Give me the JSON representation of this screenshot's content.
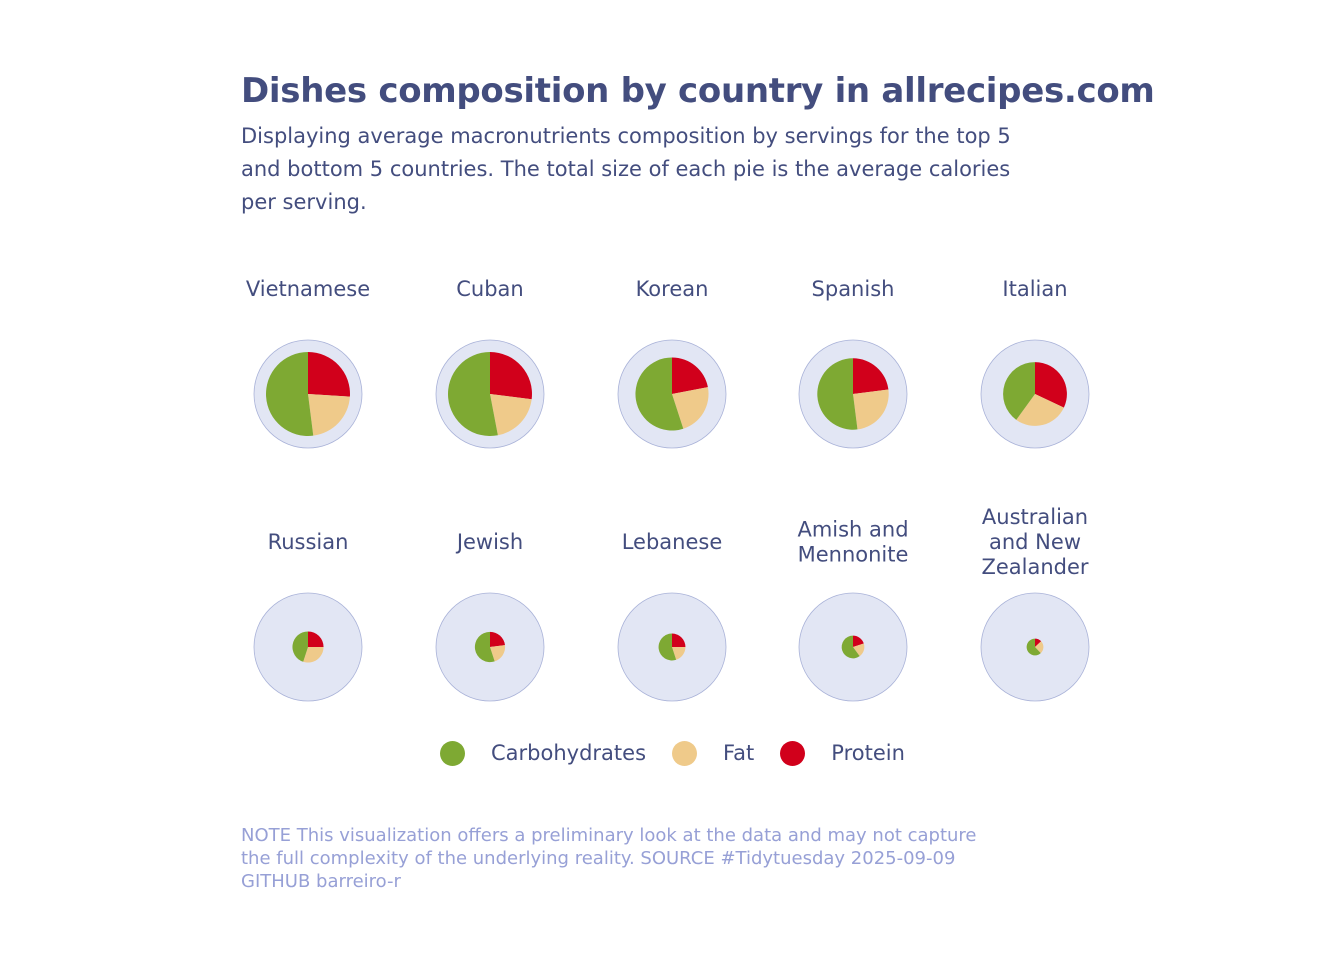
{
  "title": "Dishes composition by country in allrecipes.com",
  "subtitle": "Displaying average macronutrients composition by servings for the top 5 and bottom 5 countries. The total size of each pie is the average calories per serving.",
  "colors": {
    "carbohydrates": "#7ea933",
    "fat": "#efca8a",
    "protein": "#d1001b",
    "background_circle": "#e2e6f4",
    "background_circle_stroke": "#a9b2d8",
    "text": "#434d7e",
    "note": "#97a0d6"
  },
  "legend": [
    {
      "label": "Carbohydrates",
      "color": "#7ea933"
    },
    {
      "label": "Fat",
      "color": "#efca8a"
    },
    {
      "label": "Protein",
      "color": "#d1001b"
    }
  ],
  "chart_data": {
    "type": "pie",
    "series": [
      "Carbohydrates",
      "Fat",
      "Protein"
    ],
    "panels": [
      {
        "country": "Vietnamese",
        "calories_relative": 1.0,
        "carbohydrates": 0.52,
        "fat": 0.22,
        "protein": 0.26
      },
      {
        "country": "Cuban",
        "calories_relative": 1.0,
        "carbohydrates": 0.53,
        "fat": 0.2,
        "protein": 0.27
      },
      {
        "country": "Korean",
        "calories_relative": 0.87,
        "carbohydrates": 0.55,
        "fat": 0.23,
        "protein": 0.22
      },
      {
        "country": "Spanish",
        "calories_relative": 0.85,
        "carbohydrates": 0.52,
        "fat": 0.25,
        "protein": 0.23
      },
      {
        "country": "Italian",
        "calories_relative": 0.76,
        "carbohydrates": 0.4,
        "fat": 0.28,
        "protein": 0.32
      },
      {
        "country": "Russian",
        "calories_relative": 0.37,
        "carbohydrates": 0.45,
        "fat": 0.3,
        "protein": 0.25
      },
      {
        "country": "Jewish",
        "calories_relative": 0.36,
        "carbohydrates": 0.55,
        "fat": 0.22,
        "protein": 0.23
      },
      {
        "country": "Lebanese",
        "calories_relative": 0.32,
        "carbohydrates": 0.55,
        "fat": 0.2,
        "protein": 0.25
      },
      {
        "country": "Amish and Mennonite",
        "calories_relative": 0.27,
        "carbohydrates": 0.6,
        "fat": 0.2,
        "protein": 0.2
      },
      {
        "country": "Australian and New Zealander",
        "calories_relative": 0.2,
        "carbohydrates": 0.62,
        "fat": 0.25,
        "protein": 0.13
      }
    ]
  },
  "note": "NOTE This visualization offers a preliminary look at the data and may not capture the full complexity of the underlying reality. SOURCE #Tidytuesday 2025-09-09 GITHUB barreiro-r"
}
